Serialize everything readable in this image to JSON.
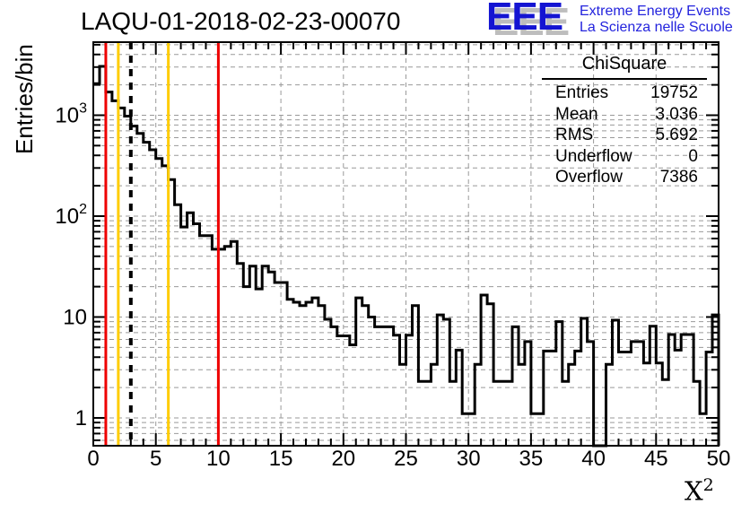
{
  "header": {
    "title": "LAQU-01-2018-02-23-00070"
  },
  "logo": {
    "acronym": "EEE",
    "line1": "Extreme Energy Events",
    "line2": "La Scienza nelle Scuole",
    "blue": "#1414d2",
    "shadow": "#bdbdbd"
  },
  "stats": {
    "title": "ChiSquare",
    "rows": [
      {
        "label": "Entries",
        "value": "19752"
      },
      {
        "label": "Mean",
        "value": "3.036"
      },
      {
        "label": "RMS",
        "value": "5.692"
      },
      {
        "label": "Underflow",
        "value": "0"
      },
      {
        "label": "Overflow",
        "value": "7386"
      }
    ]
  },
  "axes": {
    "y_title": "Entries/bin",
    "x_title_base": "X",
    "x_title_exp": "2",
    "x_ticks": [
      0,
      5,
      10,
      15,
      20,
      25,
      30,
      35,
      40,
      45,
      50
    ],
    "y_ticks": [
      {
        "label": "1",
        "value": 1
      },
      {
        "label": "10",
        "value": 10
      },
      {
        "base": "10",
        "exp": "2",
        "value": 100
      },
      {
        "base": "10",
        "exp": "3",
        "value": 1000
      }
    ]
  },
  "chart_data": {
    "type": "bar",
    "subtype": "step-histogram",
    "title": "LAQU-01-2018-02-23-00070",
    "xlabel": "X^2",
    "ylabel": "Entries/bin",
    "xlim": [
      0,
      50
    ],
    "ylim": [
      0.53,
      5300
    ],
    "ylog": true,
    "grid": {
      "on": true,
      "color": "#999999",
      "dashed": true,
      "x_step": 5,
      "y_log_minor": true
    },
    "bin_start": 0,
    "bin_width": 0.5,
    "line_color": "#000000",
    "values": [
      2060,
      3050,
      1700,
      1390,
      1180,
      980,
      780,
      660,
      540,
      455,
      372,
      315,
      230,
      130,
      78,
      108,
      84,
      64,
      64,
      47,
      47,
      50,
      56,
      34,
      20,
      32,
      19,
      32,
      28,
      22,
      22,
      15,
      14,
      13,
      14,
      15.5,
      13,
      9.5,
      8,
      6.5,
      6.5,
      5.3,
      15.5,
      13,
      10,
      8,
      8,
      8,
      6.6,
      3.4,
      6.6,
      13,
      2.3,
      2.3,
      3.4,
      10.5,
      9.5,
      2.3,
      4.7,
      1.1,
      1.1,
      3.4,
      16.5,
      13.5,
      2.3,
      2.3,
      2.3,
      8,
      3.4,
      5.7,
      1.1,
      1.1,
      4.6,
      4.6,
      9,
      2.3,
      3.4,
      4.6,
      9.7,
      5.7,
      0,
      0,
      3.4,
      9.3,
      4.5,
      4.5,
      5.7,
      5.7,
      3.5,
      8.1,
      3.5,
      2.4,
      6.7,
      4.7,
      6.7,
      6.7,
      2.3,
      1.1,
      4.5,
      10.5
    ],
    "vlines": [
      {
        "x": 1,
        "color": "#ee0000",
        "style": "solid"
      },
      {
        "x": 2,
        "color": "#ffcc00",
        "style": "solid"
      },
      {
        "x": 3,
        "color": "#000000",
        "style": "dashed"
      },
      {
        "x": 6,
        "color": "#ffcc00",
        "style": "solid"
      },
      {
        "x": 10,
        "color": "#ee0000",
        "style": "solid"
      }
    ]
  }
}
